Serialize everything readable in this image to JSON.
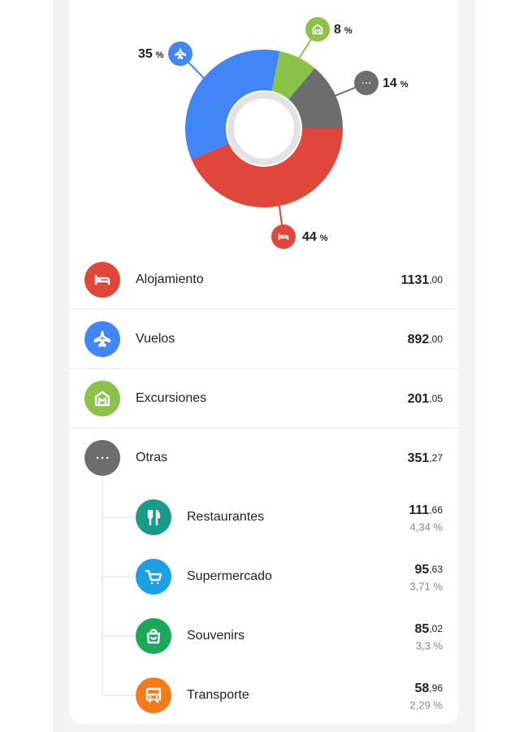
{
  "chart_data": {
    "type": "donut",
    "unit": "%",
    "values": [
      44,
      35,
      8,
      14
    ],
    "colors": [
      "#e0463a",
      "#4285f4",
      "#8bc34a",
      "#6d6d6d"
    ]
  },
  "categories": [
    {
      "name": "Alojamiento",
      "amount": "1131,00"
    },
    {
      "name": "Vuelos",
      "amount": "892,00"
    },
    {
      "name": "Excursiones",
      "amount": "201,05"
    },
    {
      "name": "Otras",
      "amount": "351,27"
    }
  ],
  "subcategories": [
    {
      "name": "Restaurantes",
      "amount": "111,66",
      "share": "4,34 %",
      "color": "#1a9b8a"
    },
    {
      "name": "Supermercado",
      "amount": "95,63",
      "share": "3,71 %",
      "color": "#1ba0e2"
    },
    {
      "name": "Souvenirs",
      "amount": "85,02",
      "share": "3,3 %",
      "color": "#1aa85a"
    },
    {
      "name": "Transporte",
      "amount": "58,96",
      "share": "2,29 %",
      "color": "#f47a1a"
    }
  ]
}
